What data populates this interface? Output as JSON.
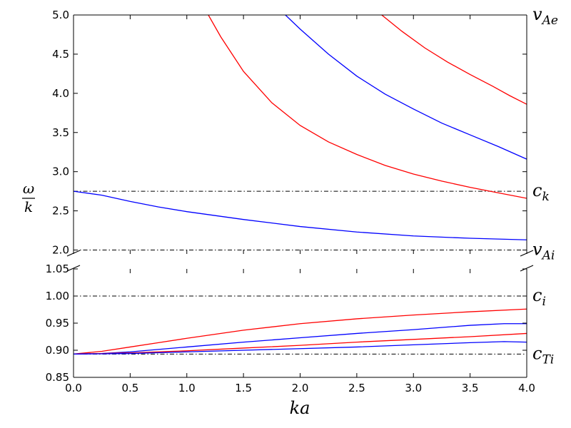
{
  "chart_data": {
    "type": "line",
    "xlabel": "ka",
    "ylabel_num": "ω",
    "ylabel_den": "k",
    "xlim": [
      0.0,
      4.0
    ],
    "x_ticks": [
      "0.0",
      "0.5",
      "1.0",
      "1.5",
      "2.0",
      "2.5",
      "3.0",
      "3.5",
      "4.0"
    ],
    "panels": [
      {
        "id": "top",
        "ylim": [
          1.95,
          5.0
        ],
        "y_ticks": [
          "2.0",
          "2.5",
          "3.0",
          "3.5",
          "4.0",
          "4.5",
          "5.0"
        ],
        "reference_lines": [
          {
            "label": "v",
            "sub": "Ae",
            "y": 5.0,
            "style": "dashdot"
          },
          {
            "label": "c",
            "sub": "k",
            "y": 2.75,
            "style": "dashdot"
          },
          {
            "label": "v",
            "sub": "Ai",
            "y": 2.0,
            "style": "dashdot"
          }
        ],
        "series": [
          {
            "color": "#0000ff",
            "points": [
              [
                0.0,
                2.75
              ],
              [
                0.25,
                2.7
              ],
              [
                0.5,
                2.62
              ],
              [
                0.75,
                2.55
              ],
              [
                1.0,
                2.49
              ],
              [
                1.5,
                2.39
              ],
              [
                2.0,
                2.3
              ],
              [
                2.5,
                2.23
              ],
              [
                3.0,
                2.18
              ],
              [
                3.5,
                2.15
              ],
              [
                4.0,
                2.13
              ]
            ]
          },
          {
            "color": "#ff0000",
            "points": [
              [
                1.19,
                5.0
              ],
              [
                1.3,
                4.72
              ],
              [
                1.5,
                4.28
              ],
              [
                1.75,
                3.88
              ],
              [
                2.0,
                3.59
              ],
              [
                2.25,
                3.38
              ],
              [
                2.5,
                3.22
              ],
              [
                2.75,
                3.08
              ],
              [
                3.0,
                2.97
              ],
              [
                3.25,
                2.88
              ],
              [
                3.5,
                2.8
              ],
              [
                3.75,
                2.73
              ],
              [
                4.0,
                2.66
              ]
            ]
          },
          {
            "color": "#0000ff",
            "points": [
              [
                1.87,
                5.0
              ],
              [
                2.0,
                4.82
              ],
              [
                2.25,
                4.5
              ],
              [
                2.5,
                4.22
              ],
              [
                2.75,
                3.99
              ],
              [
                3.0,
                3.8
              ],
              [
                3.25,
                3.62
              ],
              [
                3.5,
                3.47
              ],
              [
                3.75,
                3.32
              ],
              [
                4.0,
                3.16
              ]
            ]
          },
          {
            "color": "#ff0000",
            "points": [
              [
                2.72,
                5.0
              ],
              [
                2.9,
                4.79
              ],
              [
                3.1,
                4.58
              ],
              [
                3.3,
                4.4
              ],
              [
                3.5,
                4.24
              ],
              [
                3.7,
                4.09
              ],
              [
                3.85,
                3.97
              ],
              [
                4.0,
                3.86
              ]
            ]
          }
        ]
      },
      {
        "id": "bottom",
        "ylim": [
          0.85,
          1.05
        ],
        "y_ticks": [
          "0.85",
          "0.90",
          "0.95",
          "1.00",
          "1.05"
        ],
        "reference_lines": [
          {
            "label": "c",
            "sub": "i",
            "y": 1.0,
            "style": "dashdot"
          },
          {
            "label": "c",
            "sub": "Ti",
            "y": 0.893,
            "style": "dashdot"
          }
        ],
        "series": [
          {
            "color": "#ff0000",
            "points": [
              [
                0.0,
                0.893
              ],
              [
                0.25,
                0.898
              ],
              [
                0.5,
                0.906
              ],
              [
                0.75,
                0.914
              ],
              [
                1.0,
                0.922
              ],
              [
                1.5,
                0.937
              ],
              [
                2.0,
                0.949
              ],
              [
                2.5,
                0.958
              ],
              [
                3.0,
                0.965
              ],
              [
                3.5,
                0.971
              ],
              [
                4.0,
                0.976
              ]
            ]
          },
          {
            "color": "#0000ff",
            "points": [
              [
                0.0,
                0.893
              ],
              [
                0.25,
                0.894
              ],
              [
                0.5,
                0.897
              ],
              [
                1.0,
                0.906
              ],
              [
                1.5,
                0.915
              ],
              [
                2.0,
                0.923
              ],
              [
                2.5,
                0.931
              ],
              [
                3.0,
                0.938
              ],
              [
                3.5,
                0.946
              ],
              [
                3.8,
                0.949
              ],
              [
                4.0,
                0.949
              ]
            ]
          },
          {
            "color": "#ff0000",
            "points": [
              [
                0.0,
                0.893
              ],
              [
                0.5,
                0.895
              ],
              [
                1.0,
                0.899
              ],
              [
                1.5,
                0.904
              ],
              [
                2.0,
                0.909
              ],
              [
                2.5,
                0.915
              ],
              [
                3.0,
                0.92
              ],
              [
                3.5,
                0.925
              ],
              [
                4.0,
                0.931
              ]
            ]
          },
          {
            "color": "#0000ff",
            "points": [
              [
                0.0,
                0.893
              ],
              [
                0.5,
                0.894
              ],
              [
                1.0,
                0.897
              ],
              [
                1.5,
                0.9
              ],
              [
                2.0,
                0.903
              ],
              [
                2.5,
                0.906
              ],
              [
                3.0,
                0.91
              ],
              [
                3.5,
                0.914
              ],
              [
                3.8,
                0.916
              ],
              [
                4.0,
                0.915
              ]
            ]
          }
        ]
      }
    ]
  }
}
